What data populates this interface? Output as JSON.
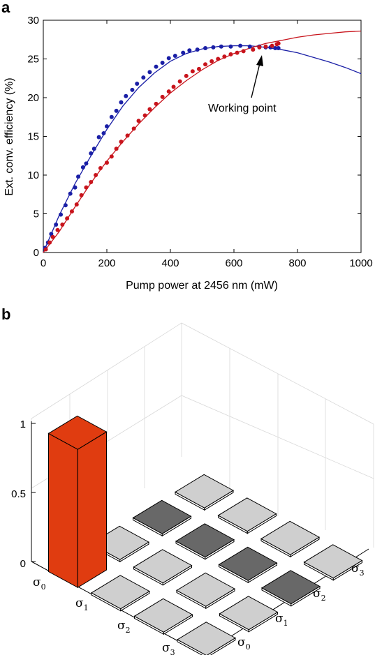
{
  "panel_a": {
    "label": "a",
    "annotation": "Working point"
  },
  "panel_b": {
    "label": "b",
    "z_ticks": [
      "0",
      "0.5",
      "1"
    ],
    "row_labels": [
      {
        "sym": "σ",
        "sub": "0"
      },
      {
        "sym": "σ",
        "sub": "1"
      },
      {
        "sym": "σ",
        "sub": "2"
      },
      {
        "sym": "σ",
        "sub": "3"
      }
    ],
    "col_labels": [
      {
        "sym": "σ",
        "sub": "0"
      },
      {
        "sym": "σ",
        "sub": "1"
      },
      {
        "sym": "σ",
        "sub": "2"
      },
      {
        "sym": "σ",
        "sub": "3"
      }
    ]
  },
  "colors": {
    "blue": "#1a1fa6",
    "red": "#c8141c",
    "bar_major": "#e03c10",
    "tile_light": "#cfcfcf",
    "tile_dark": "#686868"
  },
  "chart_data": [
    {
      "type": "scatter",
      "xlabel": "Pump power at 2456 nm (mW)",
      "ylabel": "Ext. conv. efficiency (%)",
      "xlim": [
        0,
        1000
      ],
      "ylim": [
        0,
        30
      ],
      "xticks": [
        0,
        200,
        400,
        600,
        800,
        1000
      ],
      "yticks": [
        0,
        5,
        10,
        15,
        20,
        25,
        30
      ],
      "series": [
        {
          "color": "#1a1fa6",
          "kind": "points+fit",
          "points": [
            [
              5,
              0.6
            ],
            [
              15,
              1.3
            ],
            [
              25,
              2.4
            ],
            [
              40,
              3.6
            ],
            [
              55,
              4.9
            ],
            [
              70,
              6.1
            ],
            [
              85,
              7.6
            ],
            [
              100,
              8.4
            ],
            [
              110,
              9.8
            ],
            [
              125,
              11.0
            ],
            [
              135,
              11.5
            ],
            [
              150,
              12.8
            ],
            [
              160,
              13.4
            ],
            [
              175,
              14.9
            ],
            [
              190,
              15.4
            ],
            [
              200,
              16.3
            ],
            [
              215,
              17.5
            ],
            [
              230,
              18.3
            ],
            [
              245,
              19.4
            ],
            [
              260,
              20.2
            ],
            [
              280,
              21.0
            ],
            [
              295,
              21.8
            ],
            [
              315,
              22.6
            ],
            [
              335,
              23.3
            ],
            [
              355,
              24.0
            ],
            [
              375,
              24.5
            ],
            [
              395,
              25.1
            ],
            [
              415,
              25.4
            ],
            [
              440,
              25.8
            ],
            [
              460,
              26.1
            ],
            [
              485,
              26.2
            ],
            [
              510,
              26.4
            ],
            [
              535,
              26.5
            ],
            [
              560,
              26.6
            ],
            [
              590,
              26.6
            ],
            [
              620,
              26.7
            ],
            [
              650,
              26.6
            ],
            [
              680,
              26.6
            ],
            [
              700,
              26.5
            ],
            [
              715,
              26.5
            ],
            [
              730,
              26.4
            ],
            [
              740,
              26.4
            ]
          ],
          "fit": [
            [
              0,
              0
            ],
            [
              50,
              4.8
            ],
            [
              100,
              8.9
            ],
            [
              150,
              12.5
            ],
            [
              200,
              15.9
            ],
            [
              250,
              18.9
            ],
            [
              300,
              21.3
            ],
            [
              350,
              23.2
            ],
            [
              400,
              24.7
            ],
            [
              450,
              25.7
            ],
            [
              500,
              26.3
            ],
            [
              550,
              26.6
            ],
            [
              600,
              26.7
            ],
            [
              650,
              26.7
            ],
            [
              700,
              26.5
            ],
            [
              750,
              26.2
            ],
            [
              800,
              25.8
            ],
            [
              850,
              25.2
            ],
            [
              900,
              24.6
            ],
            [
              950,
              23.9
            ],
            [
              1000,
              23.1
            ]
          ]
        },
        {
          "color": "#c8141c",
          "kind": "points+fit",
          "points": [
            [
              8,
              0.4
            ],
            [
              20,
              1.3
            ],
            [
              30,
              2.0
            ],
            [
              45,
              2.9
            ],
            [
              60,
              3.6
            ],
            [
              75,
              4.4
            ],
            [
              90,
              5.3
            ],
            [
              105,
              6.2
            ],
            [
              120,
              7.4
            ],
            [
              135,
              8.4
            ],
            [
              150,
              9.1
            ],
            [
              165,
              10.0
            ],
            [
              180,
              10.9
            ],
            [
              200,
              11.6
            ],
            [
              215,
              12.4
            ],
            [
              230,
              13.4
            ],
            [
              245,
              14.3
            ],
            [
              265,
              15.1
            ],
            [
              285,
              16.0
            ],
            [
              300,
              17.0
            ],
            [
              320,
              17.7
            ],
            [
              335,
              18.5
            ],
            [
              355,
              19.2
            ],
            [
              375,
              20.1
            ],
            [
              395,
              20.8
            ],
            [
              410,
              21.4
            ],
            [
              430,
              22.1
            ],
            [
              450,
              22.8
            ],
            [
              470,
              23.4
            ],
            [
              490,
              23.7
            ],
            [
              510,
              24.3
            ],
            [
              530,
              24.7
            ],
            [
              550,
              25.0
            ],
            [
              570,
              25.3
            ],
            [
              590,
              25.6
            ],
            [
              610,
              25.8
            ],
            [
              630,
              26.0
            ],
            [
              660,
              26.2
            ],
            [
              680,
              26.5
            ],
            [
              700,
              26.6
            ],
            [
              720,
              26.7
            ],
            [
              735,
              26.9
            ],
            [
              740,
              27.0
            ]
          ],
          "fit": [
            [
              0,
              0
            ],
            [
              50,
              2.7
            ],
            [
              100,
              5.9
            ],
            [
              150,
              9.0
            ],
            [
              200,
              11.8
            ],
            [
              250,
              14.3
            ],
            [
              300,
              16.6
            ],
            [
              350,
              18.7
            ],
            [
              400,
              20.6
            ],
            [
              450,
              22.2
            ],
            [
              500,
              23.6
            ],
            [
              550,
              24.8
            ],
            [
              600,
              25.7
            ],
            [
              650,
              26.4
            ],
            [
              700,
              27.0
            ],
            [
              750,
              27.4
            ],
            [
              800,
              27.8
            ],
            [
              850,
              28.1
            ],
            [
              900,
              28.3
            ],
            [
              950,
              28.5
            ],
            [
              1000,
              28.6
            ]
          ]
        }
      ]
    },
    {
      "type": "bar3d",
      "zlim": [
        0,
        1
      ],
      "zticks": [
        0,
        0.5,
        1
      ],
      "rows": [
        "σ0",
        "σ1",
        "σ2",
        "σ3"
      ],
      "cols": [
        "σ0",
        "σ1",
        "σ2",
        "σ3"
      ],
      "values": [
        [
          1.0,
          0.0,
          0.0,
          0.0
        ],
        [
          0.0,
          0.01,
          0.0,
          0.0
        ],
        [
          0.0,
          0.0,
          0.01,
          0.0
        ],
        [
          0.0,
          0.01,
          0.0,
          0.01
        ]
      ],
      "sign": [
        [
          1,
          1,
          -1,
          1
        ],
        [
          1,
          1,
          -1,
          1
        ],
        [
          1,
          1,
          -1,
          1
        ],
        [
          1,
          1,
          -1,
          1
        ]
      ]
    }
  ]
}
